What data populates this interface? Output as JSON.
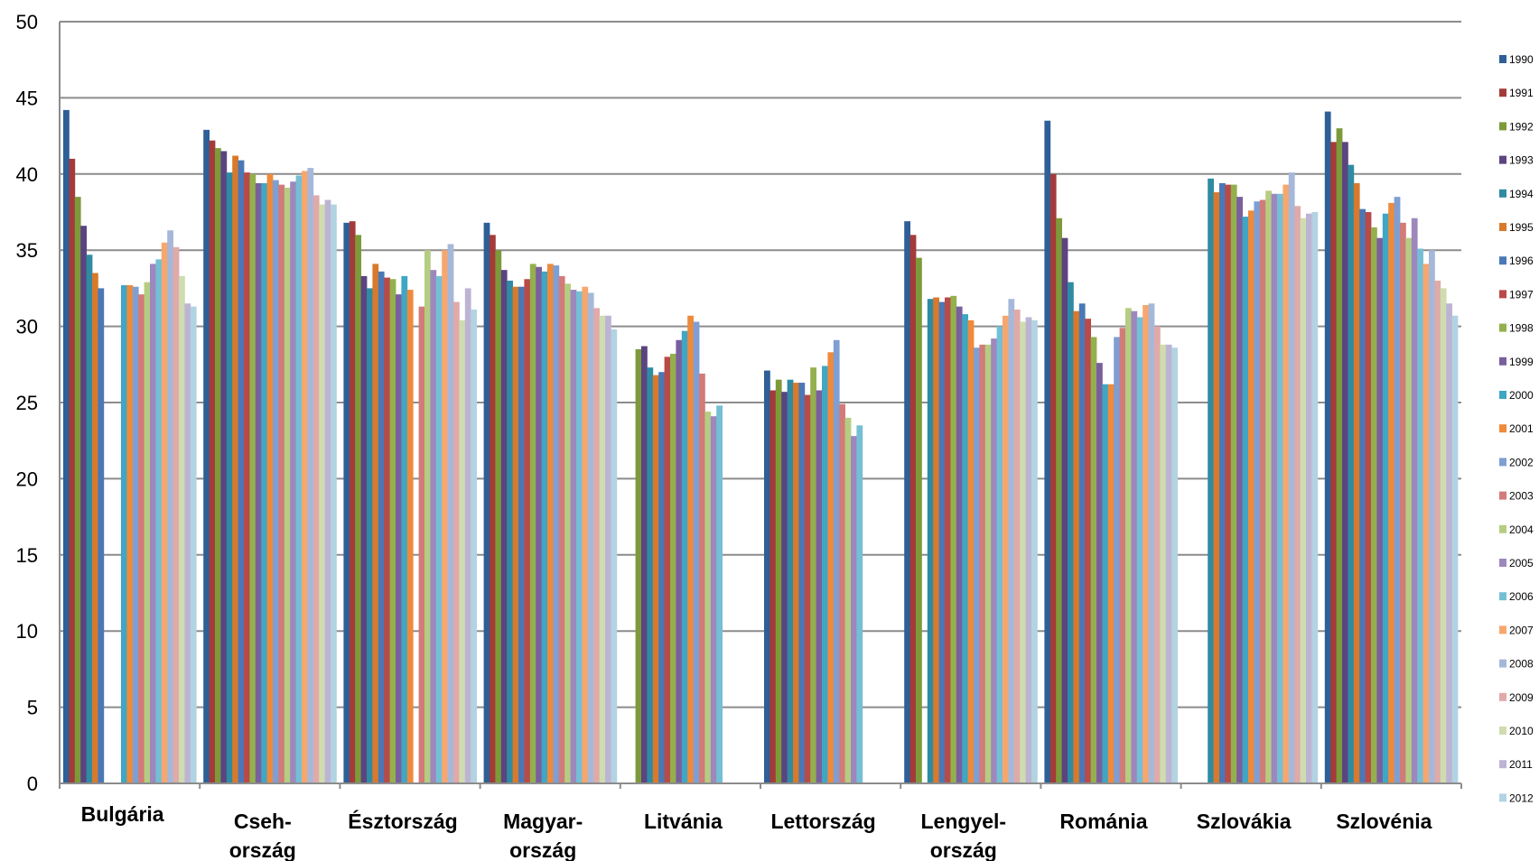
{
  "chart_data": {
    "type": "bar",
    "title": "",
    "xlabel": "",
    "ylabel": "",
    "ylim": [
      0,
      50
    ],
    "yticks": [
      0,
      5,
      10,
      15,
      20,
      25,
      30,
      35,
      40,
      45,
      50
    ],
    "grid": "major-y",
    "legend_position": "right",
    "categories": [
      [
        "Bulgária"
      ],
      [
        "Cseh-",
        "ország"
      ],
      [
        "Észtország"
      ],
      [
        "Magyar-",
        "ország"
      ],
      [
        "Litvánia"
      ],
      [
        "Lettország"
      ],
      [
        "Lengyel-",
        "ország"
      ],
      [
        "Románia"
      ],
      [
        "Szlovákia"
      ],
      [
        "Szlovénia"
      ]
    ],
    "series": [
      {
        "name": "1990",
        "color": "#2e5f97",
        "values": [
          44.2,
          42.9,
          36.8,
          36.8,
          null,
          27.1,
          36.9,
          43.5,
          null,
          44.1
        ]
      },
      {
        "name": "1991",
        "color": "#a33b3b",
        "values": [
          41.0,
          42.2,
          36.9,
          36.0,
          null,
          25.8,
          36.0,
          40.0,
          null,
          42.1
        ]
      },
      {
        "name": "1992",
        "color": "#7d9a3a",
        "values": [
          38.5,
          41.7,
          36.0,
          35.0,
          28.5,
          26.5,
          34.5,
          37.1,
          null,
          43.0
        ]
      },
      {
        "name": "1993",
        "color": "#5b4480",
        "values": [
          36.6,
          41.5,
          33.3,
          33.7,
          28.7,
          25.7,
          null,
          35.8,
          null,
          42.1
        ]
      },
      {
        "name": "1994",
        "color": "#2f8ba3",
        "values": [
          34.7,
          40.1,
          32.5,
          33.0,
          27.3,
          26.5,
          31.8,
          32.9,
          39.7,
          40.6
        ]
      },
      {
        "name": "1995",
        "color": "#d9792c",
        "values": [
          33.5,
          41.2,
          34.1,
          32.6,
          26.8,
          26.3,
          31.9,
          31.0,
          38.8,
          39.4
        ]
      },
      {
        "name": "1996",
        "color": "#4a78b6",
        "values": [
          32.5,
          40.9,
          33.6,
          32.6,
          27.0,
          26.3,
          31.6,
          31.5,
          39.4,
          37.7
        ]
      },
      {
        "name": "1997",
        "color": "#b84a48",
        "values": [
          null,
          40.1,
          33.2,
          33.1,
          28.0,
          25.5,
          31.9,
          30.5,
          39.3,
          37.5
        ]
      },
      {
        "name": "1998",
        "color": "#93b04d",
        "values": [
          null,
          40.0,
          33.1,
          34.1,
          28.2,
          27.3,
          32.0,
          29.3,
          39.3,
          36.5
        ]
      },
      {
        "name": "1999",
        "color": "#7a5f9f",
        "values": [
          null,
          39.4,
          32.1,
          33.9,
          29.1,
          25.8,
          31.3,
          27.6,
          38.5,
          35.8
        ]
      },
      {
        "name": "2000",
        "color": "#3fa6c3",
        "values": [
          32.7,
          39.4,
          33.3,
          33.6,
          29.7,
          27.4,
          30.8,
          26.2,
          37.2,
          37.4
        ]
      },
      {
        "name": "2001",
        "color": "#ee8a3c",
        "values": [
          32.7,
          40.0,
          32.4,
          34.1,
          30.7,
          28.3,
          30.4,
          26.2,
          37.6,
          38.1
        ]
      },
      {
        "name": "2002",
        "color": "#7f9fd3",
        "values": [
          32.6,
          39.6,
          null,
          34.0,
          30.3,
          29.1,
          28.6,
          29.3,
          38.2,
          38.5
        ]
      },
      {
        "name": "2003",
        "color": "#d27b79",
        "values": [
          32.1,
          39.3,
          31.3,
          33.3,
          26.9,
          24.9,
          28.8,
          29.9,
          38.3,
          36.8
        ]
      },
      {
        "name": "2004",
        "color": "#b5cd81",
        "values": [
          32.9,
          39.1,
          35.0,
          32.8,
          24.4,
          24.0,
          28.8,
          31.2,
          38.9,
          35.8
        ]
      },
      {
        "name": "2005",
        "color": "#9e87bd",
        "values": [
          34.1,
          39.5,
          33.7,
          32.4,
          24.1,
          22.8,
          29.2,
          31.0,
          38.7,
          37.1
        ]
      },
      {
        "name": "2006",
        "color": "#74bfd5",
        "values": [
          34.4,
          39.9,
          33.3,
          32.3,
          24.8,
          23.5,
          30.0,
          30.6,
          38.7,
          35.1
        ]
      },
      {
        "name": "2007",
        "color": "#f7a76e",
        "values": [
          35.5,
          40.2,
          35.0,
          32.6,
          null,
          null,
          30.7,
          31.4,
          39.3,
          34.1
        ]
      },
      {
        "name": "2008",
        "color": "#a6b8da",
        "values": [
          36.3,
          40.4,
          35.4,
          32.2,
          null,
          null,
          31.8,
          31.5,
          40.1,
          35.0
        ]
      },
      {
        "name": "2009",
        "color": "#e0aaa8",
        "values": [
          35.2,
          38.6,
          31.6,
          31.2,
          null,
          null,
          31.1,
          30.0,
          37.9,
          33.0
        ]
      },
      {
        "name": "2010",
        "color": "#cfdcb0",
        "values": [
          33.3,
          38.0,
          30.4,
          30.7,
          null,
          null,
          30.3,
          28.8,
          37.1,
          32.5
        ]
      },
      {
        "name": "2011",
        "color": "#bdb4d4",
        "values": [
          31.5,
          38.3,
          32.5,
          30.7,
          null,
          null,
          30.6,
          28.8,
          37.4,
          31.5
        ]
      },
      {
        "name": "2012",
        "color": "#b2d3e2",
        "values": [
          31.3,
          38.0,
          31.1,
          29.8,
          null,
          null,
          30.4,
          28.6,
          37.5,
          30.7
        ]
      }
    ]
  }
}
